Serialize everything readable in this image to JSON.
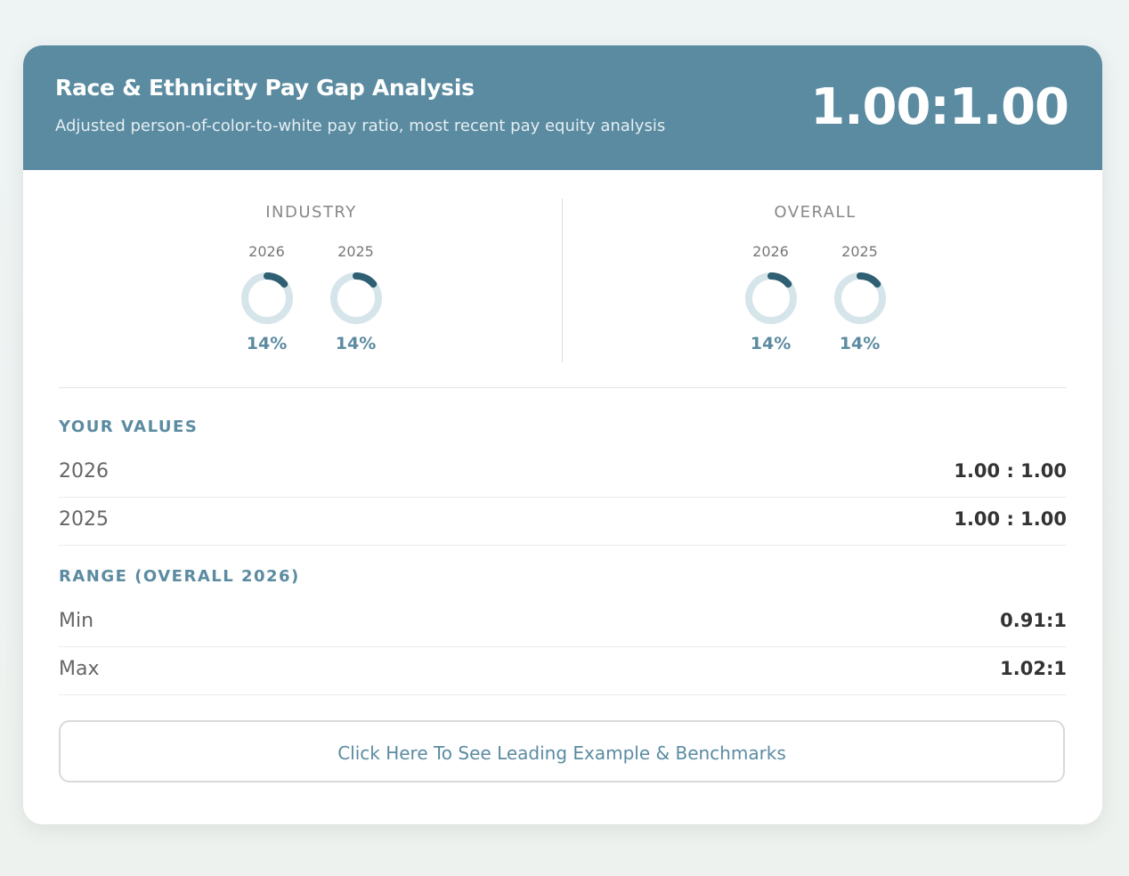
{
  "header": {
    "title": "Race & Ethnicity Pay Gap Analysis",
    "subtitle": "Adjusted person-of-color-to-white pay ratio, most recent pay equity analysis",
    "ratio": "1.00:1.00"
  },
  "colors": {
    "accent": "#5b8ba1",
    "donut_track": "#d6e5ea",
    "donut_fill": "#2f5f73"
  },
  "benchmarks": {
    "industry": {
      "label": "INDUSTRY",
      "items": [
        {
          "year": "2026",
          "percent_label": "14%",
          "percent": 14
        },
        {
          "year": "2025",
          "percent_label": "14%",
          "percent": 14
        }
      ]
    },
    "overall": {
      "label": "OVERALL",
      "items": [
        {
          "year": "2026",
          "percent_label": "14%",
          "percent": 14
        },
        {
          "year": "2025",
          "percent_label": "14%",
          "percent": 14
        }
      ]
    }
  },
  "your_values": {
    "title": "YOUR VALUES",
    "rows": [
      {
        "label": "2026",
        "value": "1.00 : 1.00"
      },
      {
        "label": "2025",
        "value": "1.00 : 1.00"
      }
    ]
  },
  "range": {
    "title": "RANGE (OVERALL 2026)",
    "rows": [
      {
        "label": "Min",
        "value": "0.91:1"
      },
      {
        "label": "Max",
        "value": "1.02:1"
      }
    ]
  },
  "cta": {
    "label": "Click Here To See Leading Example & Benchmarks"
  }
}
